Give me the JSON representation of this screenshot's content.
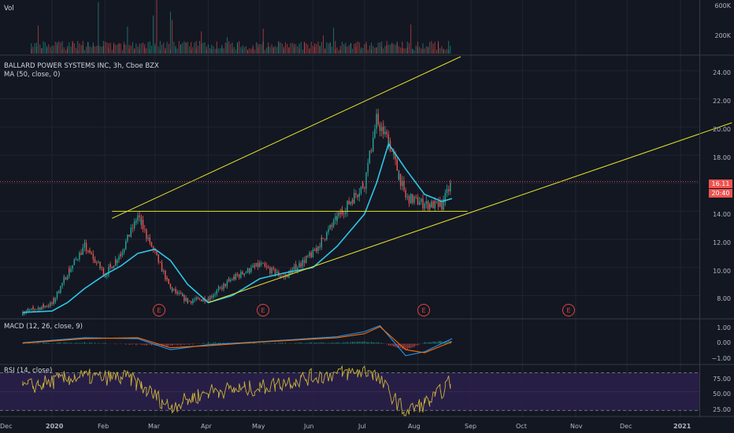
{
  "panes": {
    "vol": {
      "title": "Vol",
      "ticks": [
        "600K",
        "200K"
      ]
    },
    "price": {
      "title": "BALLARD POWER SYSTEMS INC, 3h, Cboe BZX",
      "subtitle": "MA (50, close, 0)",
      "ticks": [
        "24.00",
        "22.00",
        "20.00",
        "18.00",
        "16.00",
        "14.00",
        "12.00",
        "10.00",
        "8.00"
      ],
      "last_price": "16.11",
      "countdown": "20:40",
      "earnings_marker": "E"
    },
    "macd": {
      "title": "MACD (12, 26, close, 9)",
      "ticks": [
        "1.00",
        "0.00",
        "−1.00"
      ]
    },
    "rsi": {
      "title": "RSI (14, close)",
      "ticks": [
        "75.00",
        "50.00",
        "25.00"
      ]
    }
  },
  "time_axis": [
    "Dec",
    "2020",
    "Feb",
    "Mar",
    "Apr",
    "May",
    "Jun",
    "Jul",
    "Aug",
    "Sep",
    "Oct",
    "Nov",
    "Dec",
    "2021"
  ],
  "colors": {
    "background": "#131722",
    "grid": "#1f2431",
    "up": "#26a69a",
    "down": "#ef5350",
    "ma": "#2ec7e6",
    "trendline": "#e4e02a",
    "macd": "#2196f3",
    "signal": "#ff6d00",
    "rsi": "#c9b13a",
    "rsi_band": "#2a1f4a",
    "earnings": "#e0463c",
    "price_line": "#ef5350"
  },
  "chart_data": [
    {
      "type": "candlestick",
      "title": "BALLARD POWER SYSTEMS INC, 3h, Cboe BZX",
      "x": [
        "2019-12-15",
        "2020-01-01",
        "2020-01-10",
        "2020-01-20",
        "2020-02-01",
        "2020-02-10",
        "2020-02-20",
        "2020-03-01",
        "2020-03-10",
        "2020-03-20",
        "2020-04-01",
        "2020-04-15",
        "2020-05-01",
        "2020-05-15",
        "2020-06-01",
        "2020-06-15",
        "2020-07-01",
        "2020-07-08",
        "2020-07-15",
        "2020-07-25",
        "2020-08-05",
        "2020-08-15",
        "2020-08-21"
      ],
      "close": [
        6.8,
        7.4,
        9.6,
        11.5,
        9.5,
        11.0,
        13.6,
        11.0,
        8.5,
        7.6,
        7.8,
        9.2,
        10.2,
        9.3,
        11.0,
        13.5,
        16.0,
        20.5,
        19.0,
        15.0,
        14.5,
        14.4,
        16.11
      ],
      "ylim": [
        6.4,
        25.0
      ],
      "ma_label": "MA (50, close, 0)",
      "ma_y": [
        6.8,
        6.9,
        7.5,
        8.5,
        9.5,
        10.1,
        11.0,
        11.3,
        10.5,
        8.8,
        7.5,
        8.0,
        9.2,
        9.6,
        10.0,
        11.5,
        13.8,
        16.0,
        18.8,
        17.0,
        15.2,
        14.7,
        14.9
      ],
      "trendlines": [
        {
          "x": [
            "2020-02-05",
            "2020-08-26"
          ],
          "y": [
            13.5,
            25.0
          ]
        },
        {
          "x": [
            "2020-04-01",
            "2021-01-31"
          ],
          "y": [
            7.5,
            20.3
          ]
        },
        {
          "x": [
            "2020-02-05",
            "2020-08-30"
          ],
          "y": [
            14.0,
            14.0
          ]
        }
      ],
      "earnings_x": [
        "2020-03-07",
        "2020-05-07",
        "2020-08-06",
        "2020-11-04"
      ]
    },
    {
      "type": "bar",
      "title": "Vol",
      "ylim": [
        0,
        650000
      ],
      "note": "volume histogram Jan–Aug 2020, typical 100K–250K with spikes to ~600K"
    },
    {
      "type": "line",
      "title": "MACD (12, 26, close, 9)",
      "ylim": [
        -1.0,
        1.2
      ],
      "x": [
        "2019-12-15",
        "2020-01-20",
        "2020-02-20",
        "2020-03-10",
        "2020-04-01",
        "2020-05-01",
        "2020-06-15",
        "2020-07-01",
        "2020-07-10",
        "2020-07-25",
        "2020-08-05",
        "2020-08-21"
      ],
      "series": [
        {
          "name": "MACD",
          "values": [
            0.05,
            0.3,
            0.25,
            -0.3,
            -0.05,
            0.1,
            0.35,
            0.6,
            0.9,
            -0.6,
            -0.4,
            0.25
          ]
        },
        {
          "name": "Signal",
          "values": [
            0.03,
            0.25,
            0.3,
            -0.2,
            -0.1,
            0.08,
            0.3,
            0.5,
            0.85,
            -0.3,
            -0.45,
            0.1
          ]
        }
      ]
    },
    {
      "type": "line",
      "title": "RSI (14, close)",
      "ylim": [
        18,
        85
      ],
      "x": [
        "2019-12-15",
        "2020-01-15",
        "2020-02-15",
        "2020-03-10",
        "2020-04-01",
        "2020-05-01",
        "2020-06-01",
        "2020-07-05",
        "2020-07-25",
        "2020-08-10",
        "2020-08-21"
      ],
      "series": [
        {
          "name": "RSI",
          "values": [
            55,
            70,
            68,
            30,
            50,
            55,
            70,
            78,
            22,
            40,
            65
          ]
        }
      ],
      "bands": [
        25,
        75
      ]
    }
  ]
}
